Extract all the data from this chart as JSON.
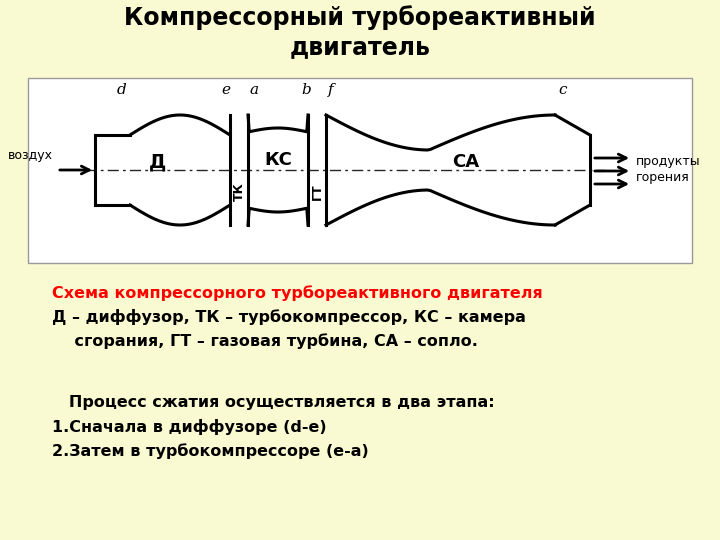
{
  "title": "Компрессорный турбореактивный\nдвигатель",
  "title_fontsize": 17,
  "title_fontweight": "bold",
  "bg_color": "#FAFAD2",
  "diagram_bg": "#FFFFFF",
  "caption_line1": "Схема компрессорного турбореактивного двигателя",
  "caption_line2": "Д – диффузор, ТК – турбокомпрессор, КС – камера",
  "caption_line3": "    сгорания, ГТ – газовая турбина, СА – сопло.",
  "caption_color": "#FF0000",
  "caption_color2": "#000000",
  "process_line0": "   Процесс сжатия осуществляется в два этапа:",
  "process_line1": "1.Сначала в диффузоре (d-e)",
  "process_line2": "2.Затем в турбокомпрессоре (e-a)",
  "process_color": "#000000",
  "label_vozduh": "воздух",
  "label_produkty": "продукты",
  "label_goreniya": "горения",
  "label_D": "Д",
  "label_KS": "КС",
  "label_TK": "ТК",
  "label_GT": "ГТ",
  "label_SA": "СА",
  "point_d": "d",
  "point_e": "e",
  "point_a": "a",
  "point_b": "b",
  "point_f": "f",
  "point_c": "c",
  "font_name": "Comic Sans MS"
}
